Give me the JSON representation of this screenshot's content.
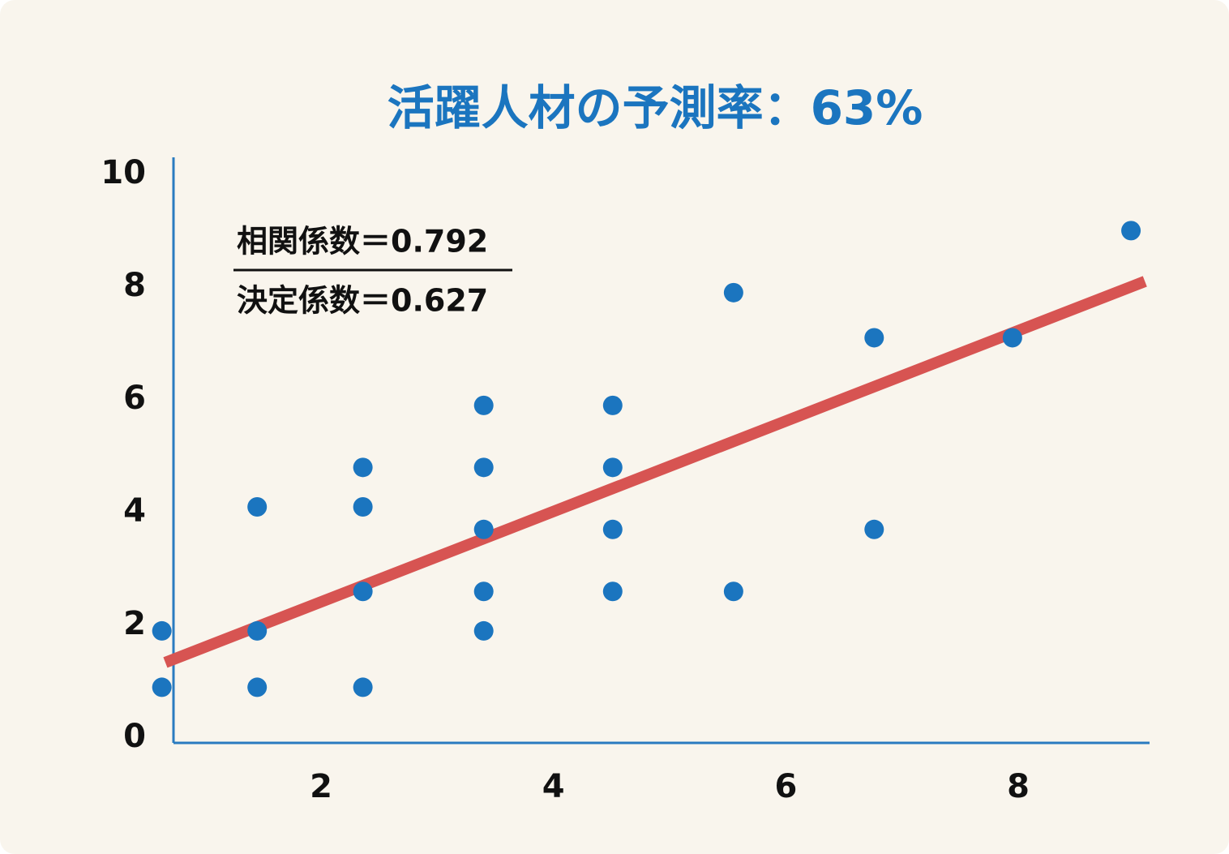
{
  "chart_data": {
    "type": "scatter",
    "title": "活躍人材の予測率：63%",
    "annotations": [
      "相関係数＝0.792",
      "決定係数＝0.627"
    ],
    "series": [
      {
        "color": "#1b75bf",
        "x": [
          0.63,
          0.63,
          1.45,
          1.45,
          1.45,
          2.36,
          2.36,
          2.36,
          2.36,
          3.4,
          3.4,
          3.4,
          3.4,
          3.4,
          4.51,
          4.51,
          4.51,
          4.51,
          5.55,
          5.55,
          6.76,
          6.76,
          7.95,
          8.97
        ],
        "values": [
          1.9,
          0.9,
          4.1,
          1.9,
          0.9,
          4.8,
          4.1,
          2.6,
          0.9,
          5.9,
          4.8,
          3.7,
          2.6,
          1.9,
          5.9,
          4.8,
          3.7,
          2.6,
          7.9,
          2.6,
          7.1,
          3.7,
          7.1,
          9.0
        ]
      }
    ],
    "trend_line": {
      "color": "#d75452",
      "x": [
        0.66,
        9.09
      ],
      "y": [
        1.34,
        8.1
      ]
    },
    "axis_color": "#2a7bc0",
    "xlim": [
      0.73,
      9.13
    ],
    "xticks": [
      2,
      4,
      6,
      8
    ],
    "ylim": [
      0,
      10.3
    ],
    "yticks": [
      0,
      2,
      4,
      6,
      8,
      10
    ],
    "grid": false
  }
}
